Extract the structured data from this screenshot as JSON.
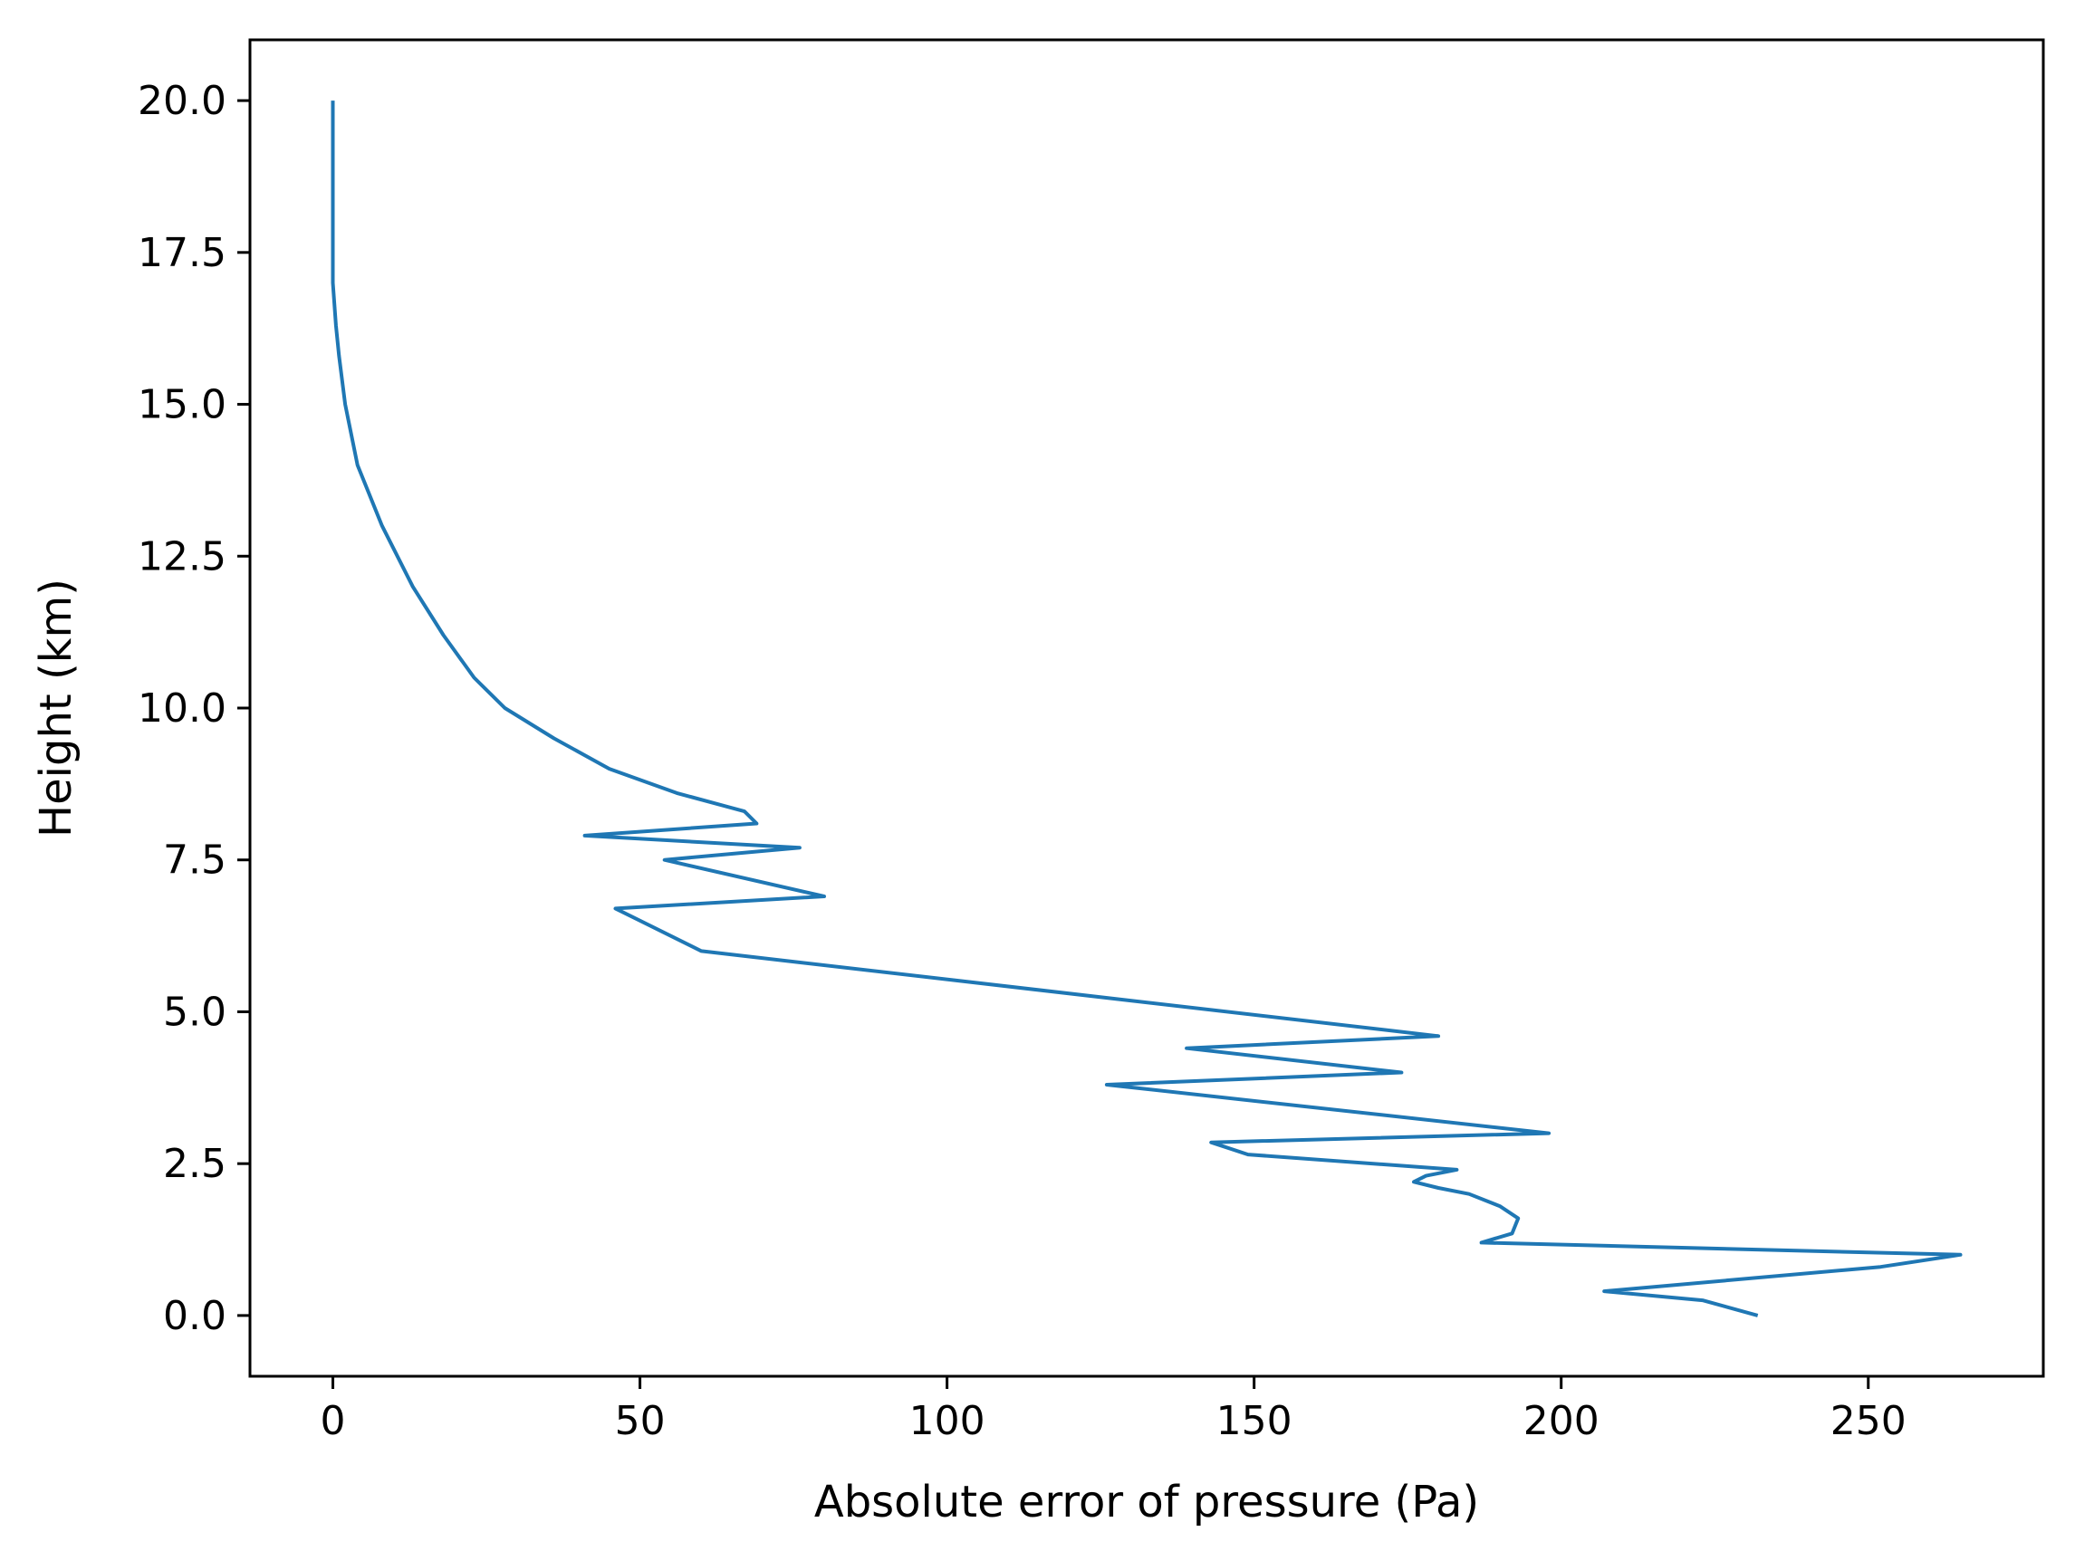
{
  "chart_data": {
    "type": "line",
    "title": "",
    "xlabel": "Absolute error of pressure (Pa)",
    "ylabel": "Height (km)",
    "xlim": [
      -13.5,
      278.5
    ],
    "ylim": [
      -1.0,
      21.0
    ],
    "xticks": [
      0,
      50,
      100,
      150,
      200,
      250
    ],
    "xtick_labels": [
      "0",
      "50",
      "100",
      "150",
      "200",
      "250"
    ],
    "yticks": [
      0.0,
      2.5,
      5.0,
      7.5,
      10.0,
      12.5,
      15.0,
      17.5,
      20.0
    ],
    "ytick_labels": [
      "0.0",
      "2.5",
      "5.0",
      "7.5",
      "10.0",
      "12.5",
      "15.0",
      "17.5",
      "20.0"
    ],
    "grid": false,
    "legend": "none",
    "line_color": "#1f77b4",
    "series": [
      {
        "x": [
          232,
          223,
          207,
          252,
          265,
          187,
          192,
          193,
          190,
          185,
          180,
          176,
          178,
          183,
          149,
          143,
          198,
          126,
          174,
          139,
          180,
          60,
          46,
          80,
          54,
          76,
          41,
          69,
          67,
          56,
          45,
          36,
          28,
          23,
          18,
          13,
          8,
          4,
          2,
          1,
          0.5,
          0,
          0,
          0,
          0
        ],
        "y": [
          0.0,
          0.25,
          0.4,
          0.8,
          1.0,
          1.2,
          1.35,
          1.6,
          1.8,
          2.0,
          2.1,
          2.2,
          2.3,
          2.4,
          2.65,
          2.85,
          3.0,
          3.8,
          4.0,
          4.4,
          4.6,
          6.0,
          6.7,
          6.9,
          7.5,
          7.7,
          7.9,
          8.1,
          8.3,
          8.6,
          9.0,
          9.5,
          10.0,
          10.5,
          11.2,
          12.0,
          13.0,
          14.0,
          15.0,
          15.8,
          16.3,
          17.0,
          18.0,
          19.0,
          20.0
        ]
      }
    ]
  }
}
